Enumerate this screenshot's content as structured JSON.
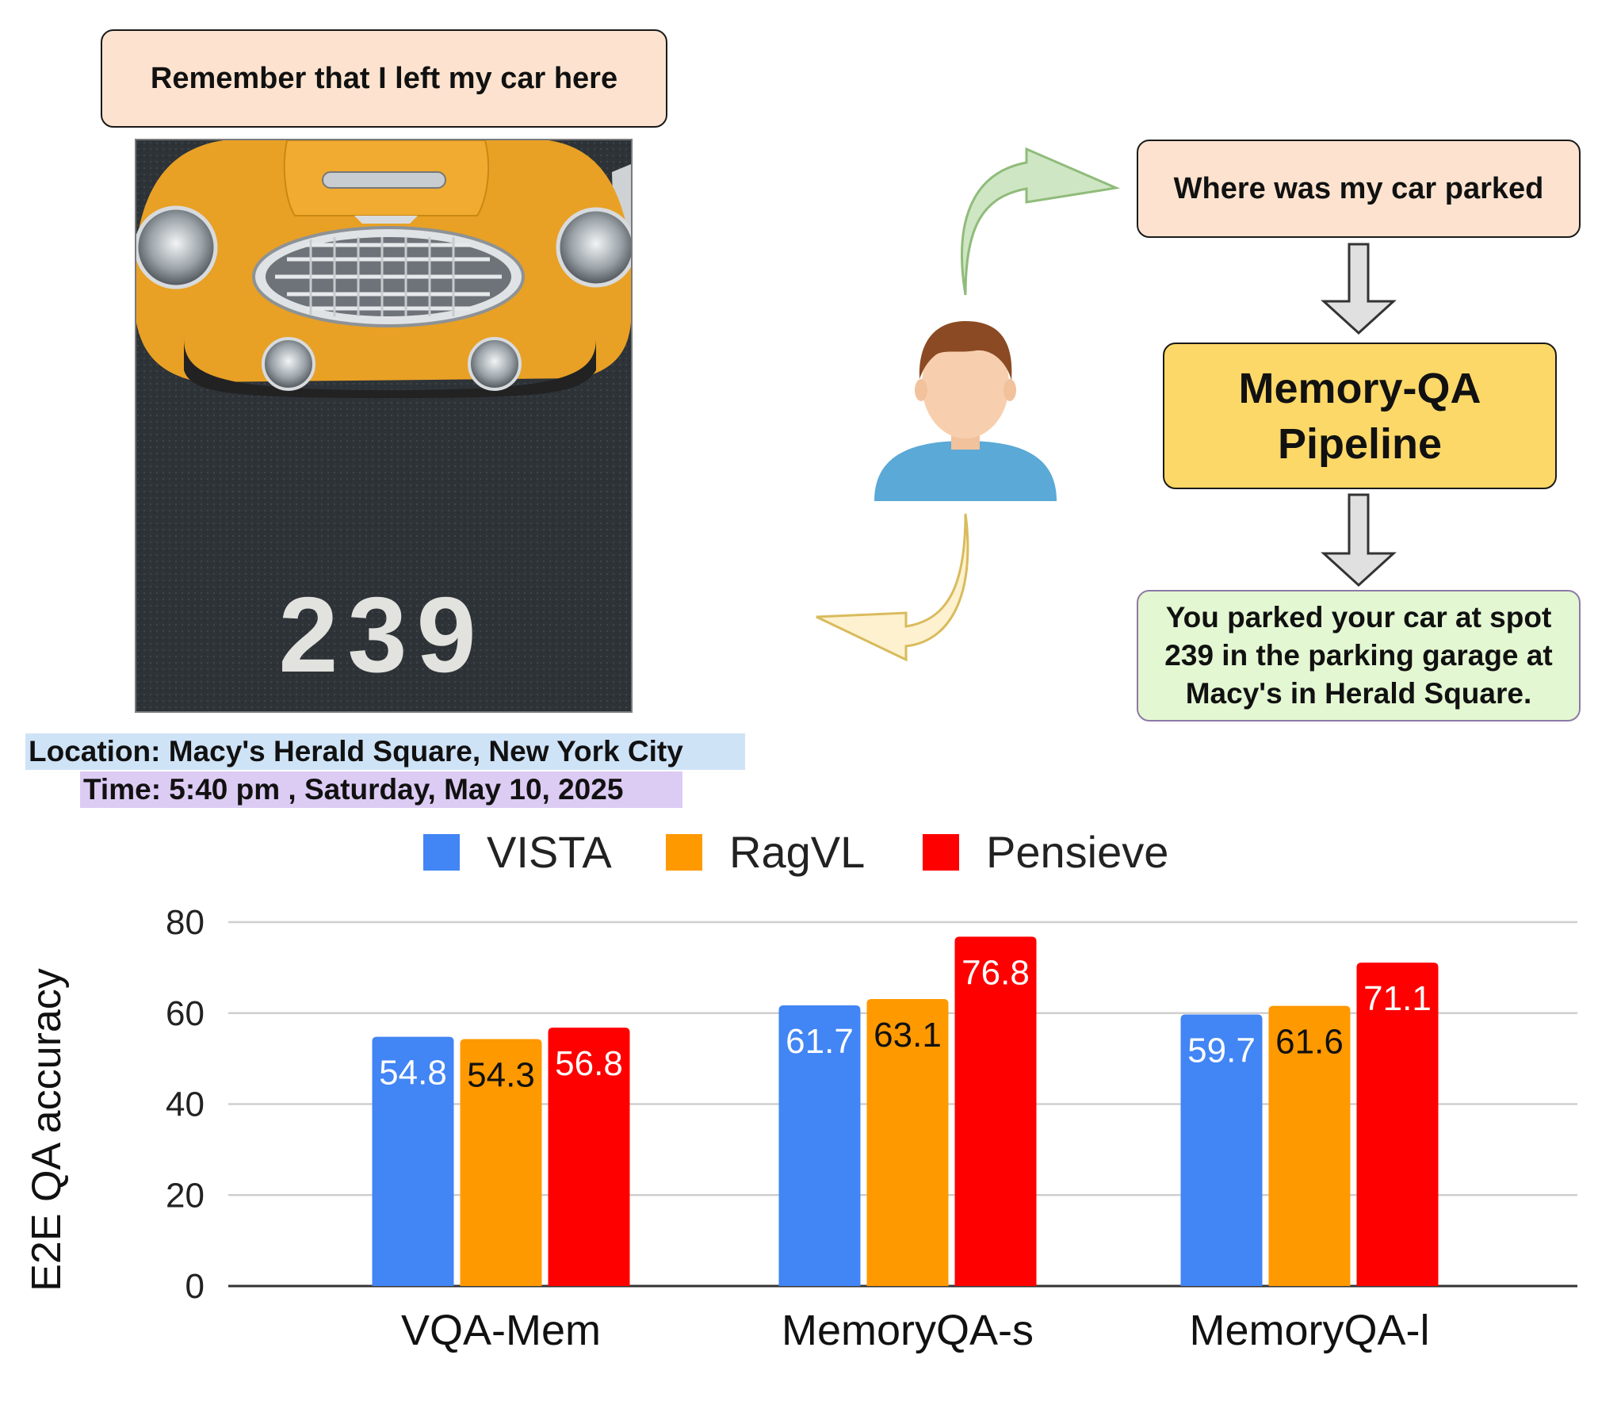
{
  "diagram": {
    "caption": "Remember that I left my car here",
    "photo_spot_number": "239",
    "location": "Location: Macy's Herald Square, New York City",
    "time": "Time: 5:40 pm , Saturday, May 10, 2025",
    "question": "Where was my car parked",
    "pipeline_line1": "Memory-QA",
    "pipeline_line2": "Pipeline",
    "answer_line1": "You parked your car at spot",
    "answer_line2": "239 in the parking garage at",
    "answer_line3": "Macy's in Herald Square.",
    "icons": [
      "user-avatar-icon",
      "car-photo",
      "curved-arrow-icon",
      "down-arrow-icon"
    ]
  },
  "chart_data": {
    "type": "bar",
    "title": "",
    "xlabel": "",
    "ylabel": "E2E QA accuracy",
    "ylim": [
      0,
      80
    ],
    "yticks": [
      0,
      20,
      40,
      60,
      80
    ],
    "grid": true,
    "legend_position": "top",
    "categories": [
      "VQA-Mem",
      "MemoryQA-s",
      "MemoryQA-l"
    ],
    "series": [
      {
        "name": "VISTA",
        "color": "#4285f4",
        "label_color": "#ffffff",
        "values": [
          54.8,
          61.7,
          59.7
        ]
      },
      {
        "name": "RagVL",
        "color": "#ff9900",
        "label_color": "#111111",
        "values": [
          54.3,
          63.1,
          61.6
        ]
      },
      {
        "name": "Pensieve",
        "color": "#ff0000",
        "label_color": "#ffffff",
        "values": [
          56.8,
          76.8,
          71.1
        ]
      }
    ]
  }
}
